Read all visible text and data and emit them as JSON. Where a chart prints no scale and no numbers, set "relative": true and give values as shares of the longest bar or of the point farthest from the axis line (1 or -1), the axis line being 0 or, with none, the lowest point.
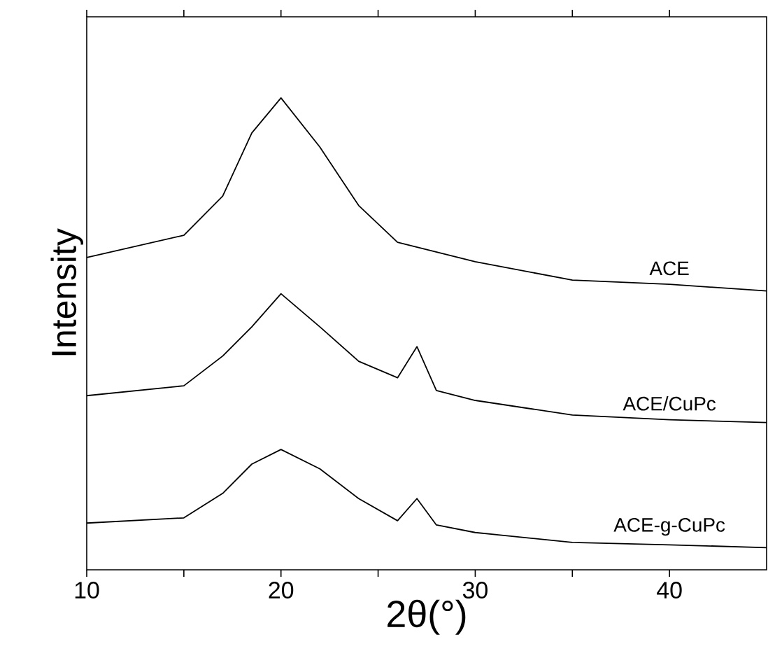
{
  "chart_data": {
    "type": "line",
    "relative": true,
    "xlabel": "2θ(°)",
    "ylabel": "Intensity",
    "xlim": [
      10,
      45
    ],
    "xticks": [
      10,
      {
        "value": 15,
        "label": null
      },
      20,
      {
        "value": 25,
        "label": null
      },
      30,
      {
        "value": 35,
        "label": null
      },
      40
    ],
    "legend": false,
    "grid": false,
    "marker": "none",
    "line_style": "solid",
    "series": [
      {
        "name": "ACE",
        "color": "#000000",
        "x": [
          10,
          15,
          17,
          18.5,
          20,
          22,
          24,
          26,
          30,
          35,
          40,
          45
        ],
        "values": [
          0.662,
          0.709,
          0.792,
          0.926,
          1.0,
          0.896,
          0.772,
          0.694,
          0.653,
          0.614,
          0.605,
          0.591
        ]
      },
      {
        "name": "ACE/CuPc",
        "color": "#000000",
        "x": [
          10,
          15,
          17,
          18.5,
          20,
          22,
          24,
          26,
          27,
          28,
          30,
          35,
          40,
          45
        ],
        "values": [
          0.369,
          0.39,
          0.453,
          0.515,
          0.585,
          0.515,
          0.442,
          0.407,
          0.473,
          0.38,
          0.359,
          0.328,
          0.318,
          0.312
        ]
      },
      {
        "name": "ACE-g-CuPc",
        "color": "#000000",
        "x": [
          10,
          15,
          17,
          18.5,
          20,
          22,
          24,
          26,
          27,
          28,
          30,
          35,
          40,
          45
        ],
        "values": [
          0.099,
          0.11,
          0.162,
          0.224,
          0.255,
          0.214,
          0.151,
          0.104,
          0.151,
          0.095,
          0.079,
          0.058,
          0.053,
          0.047
        ]
      }
    ]
  }
}
